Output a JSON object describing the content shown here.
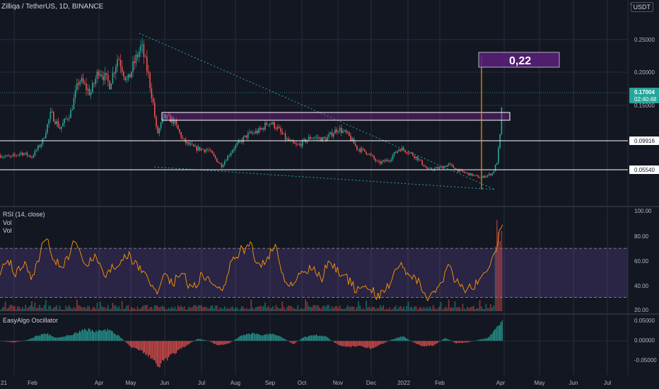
{
  "header": {
    "symbol": "Zilliqa / TetherUS, 1D, BINANCE",
    "currency": "USDT",
    "chevron_icon": "chevron-up-icon"
  },
  "price_pane": {
    "y_ticks": [
      "0.25000",
      "0.20000",
      "0.15000"
    ],
    "price_tag": "0.17004",
    "countdown": "02:40:48",
    "level_tags": [
      "0.09916",
      "0.05540"
    ],
    "target_label": "0,22"
  },
  "rsi_pane": {
    "title": "RSI (14, close)",
    "sub1": "Vol",
    "sub2": "Vol",
    "ticks": [
      "100.00",
      "80.00",
      "60.00",
      "40.00",
      "20.00"
    ]
  },
  "osc_pane": {
    "title": "EasyAlgo Oscillator",
    "ticks": [
      "0.05000",
      "0.00000",
      "-0.05000"
    ]
  },
  "x_axis": {
    "labels": [
      "21",
      "Feb",
      "Apr",
      "May",
      "Jun",
      "Jul",
      "Aug",
      "Sep",
      "Oct",
      "Nov",
      "Dec",
      "2022",
      "Feb",
      "Apr",
      "May",
      "Jun",
      "Jul"
    ]
  },
  "colors": {
    "background": "#131722",
    "up": "#26a69a",
    "down": "#ef5350",
    "rsi_line": "#ff9800",
    "rsi_band": "#7e57c2",
    "trend": "#26a69a",
    "box": "#9c27b0",
    "grid": "#2a2e39"
  },
  "chart_data": [
    {
      "type": "candlestick",
      "title": "Zilliqa / TetherUS, 1D, BINANCE",
      "xlabel": "",
      "ylabel": "",
      "x": [
        "2021-01",
        "2021-02",
        "2021-03",
        "2021-04",
        "2021-05",
        "2021-06",
        "2021-07",
        "2021-08",
        "2021-09",
        "2021-10",
        "2021-11",
        "2021-12",
        "2022-01",
        "2022-02",
        "2022-03",
        "2022-03-31"
      ],
      "close": [
        0.075,
        0.13,
        0.18,
        0.21,
        0.16,
        0.105,
        0.085,
        0.1,
        0.125,
        0.095,
        0.12,
        0.09,
        0.06,
        0.055,
        0.04,
        0.17004
      ],
      "last_price": 0.17004,
      "high": 0.255,
      "ylim": [
        0.0,
        0.3
      ],
      "horizontal_levels": [
        0.09916,
        0.0554
      ],
      "resistance_zone": [
        0.127,
        0.138
      ],
      "annotation": "0,22",
      "grid": true
    },
    {
      "type": "line",
      "title": "RSI (14, close)",
      "ylim": [
        20,
        100
      ],
      "band": [
        30,
        70
      ],
      "last_value": 90,
      "series": [
        {
          "values": [
            50,
            72,
            45,
            55,
            40,
            32,
            45,
            70,
            55,
            45,
            60,
            35,
            30,
            45,
            40,
            90
          ]
        }
      ]
    },
    {
      "type": "bar",
      "title": "EasyAlgo Oscillator",
      "ylim": [
        -0.07,
        0.06
      ],
      "series": [
        {
          "values": [
            0.0,
            0.02,
            0.015,
            0.025,
            0.0,
            -0.055,
            -0.02,
            0.01,
            0.02,
            -0.01,
            0.005,
            -0.015,
            -0.01,
            -0.005,
            0.005,
            0.05
          ]
        }
      ]
    }
  ]
}
